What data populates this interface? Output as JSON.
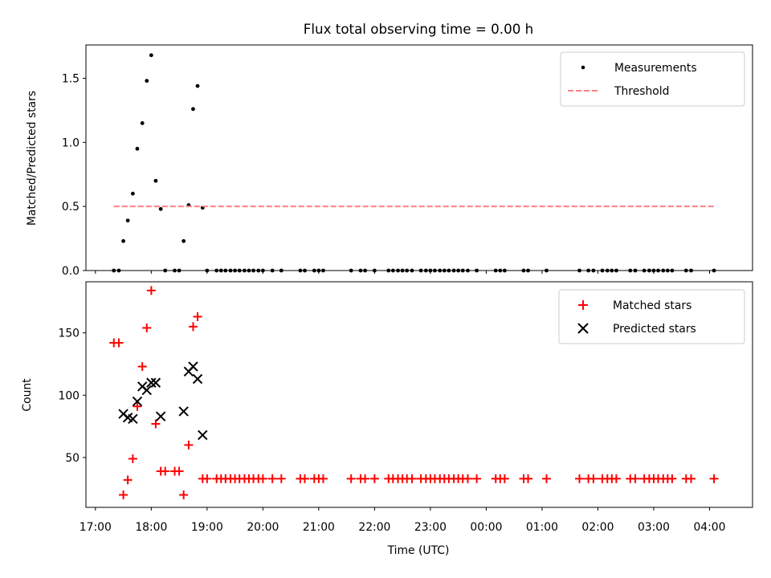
{
  "chart_data": [
    {
      "type": "scatter",
      "title": "Flux total observing time = 0.00 h",
      "xlabel": "",
      "ylabel": "Matched/Predicted stars",
      "xlim": [
        16.83,
        28.77
      ],
      "ylim": [
        0.0,
        1.76
      ],
      "yticks": [
        0.0,
        0.5,
        1.0,
        1.5
      ],
      "ytick_labels": [
        "0.0",
        "0.5",
        "1.0",
        "1.5"
      ],
      "legend_position": "top-right",
      "series": [
        {
          "name": "Measurements",
          "marker": "dot",
          "color": "#000000",
          "points": [
            [
              17.33,
              0.0
            ],
            [
              17.42,
              0.0
            ],
            [
              17.5,
              0.23
            ],
            [
              17.58,
              0.39
            ],
            [
              17.67,
              0.6
            ],
            [
              17.75,
              0.95
            ],
            [
              17.84,
              1.15
            ],
            [
              17.92,
              1.48
            ],
            [
              18.0,
              1.68
            ],
            [
              18.08,
              0.7
            ],
            [
              18.17,
              0.48
            ],
            [
              18.25,
              0.0
            ],
            [
              18.42,
              0.0
            ],
            [
              18.5,
              0.0
            ],
            [
              18.58,
              0.23
            ],
            [
              18.67,
              0.51
            ],
            [
              18.75,
              1.26
            ],
            [
              18.83,
              1.44
            ],
            [
              18.92,
              0.49
            ],
            [
              19.0,
              0.0
            ],
            [
              19.17,
              0.0
            ],
            [
              19.25,
              0.0
            ],
            [
              19.33,
              0.0
            ],
            [
              19.42,
              0.0
            ],
            [
              19.5,
              0.0
            ],
            [
              19.58,
              0.0
            ],
            [
              19.67,
              0.0
            ],
            [
              19.75,
              0.0
            ],
            [
              19.83,
              0.0
            ],
            [
              19.92,
              0.0
            ],
            [
              20.0,
              0.0
            ],
            [
              20.17,
              0.0
            ],
            [
              20.33,
              0.0
            ],
            [
              20.67,
              0.0
            ],
            [
              20.75,
              0.0
            ],
            [
              20.92,
              0.0
            ],
            [
              21.0,
              0.0
            ],
            [
              21.08,
              0.0
            ],
            [
              21.58,
              0.0
            ],
            [
              21.75,
              0.0
            ],
            [
              21.83,
              0.0
            ],
            [
              22.0,
              0.0
            ],
            [
              22.25,
              0.0
            ],
            [
              22.33,
              0.0
            ],
            [
              22.42,
              0.0
            ],
            [
              22.5,
              0.0
            ],
            [
              22.58,
              0.0
            ],
            [
              22.67,
              0.0
            ],
            [
              22.83,
              0.0
            ],
            [
              22.92,
              0.0
            ],
            [
              23.0,
              0.0
            ],
            [
              23.08,
              0.0
            ],
            [
              23.17,
              0.0
            ],
            [
              23.25,
              0.0
            ],
            [
              23.33,
              0.0
            ],
            [
              23.42,
              0.0
            ],
            [
              23.5,
              0.0
            ],
            [
              23.58,
              0.0
            ],
            [
              23.67,
              0.0
            ],
            [
              23.83,
              0.0
            ],
            [
              24.17,
              0.0
            ],
            [
              24.25,
              0.0
            ],
            [
              24.33,
              0.0
            ],
            [
              24.67,
              0.0
            ],
            [
              24.75,
              0.0
            ],
            [
              25.08,
              0.0
            ],
            [
              25.67,
              0.0
            ],
            [
              25.83,
              0.0
            ],
            [
              25.92,
              0.0
            ],
            [
              26.08,
              0.0
            ],
            [
              26.17,
              0.0
            ],
            [
              26.25,
              0.0
            ],
            [
              26.33,
              0.0
            ],
            [
              26.58,
              0.0
            ],
            [
              26.67,
              0.0
            ],
            [
              26.83,
              0.0
            ],
            [
              26.92,
              0.0
            ],
            [
              27.0,
              0.0
            ],
            [
              27.08,
              0.0
            ],
            [
              27.17,
              0.0
            ],
            [
              27.25,
              0.0
            ],
            [
              27.33,
              0.0
            ],
            [
              27.58,
              0.0
            ],
            [
              27.67,
              0.0
            ],
            [
              28.08,
              0.0
            ]
          ]
        },
        {
          "name": "Threshold",
          "marker": "dashed-line",
          "color": "#ff7f7f",
          "points": [
            [
              17.33,
              0.5
            ],
            [
              28.08,
              0.5
            ]
          ]
        }
      ]
    },
    {
      "type": "scatter",
      "title": "",
      "xlabel": "Time (UTC)",
      "ylabel": "Count",
      "xlim": [
        16.83,
        28.77
      ],
      "ylim": [
        10,
        191
      ],
      "yticks": [
        50,
        100,
        150
      ],
      "ytick_labels": [
        "50",
        "100",
        "150"
      ],
      "xticks": [
        17,
        18,
        19,
        20,
        21,
        22,
        23,
        24,
        25,
        26,
        27,
        28
      ],
      "xtick_labels": [
        "17:00",
        "18:00",
        "19:00",
        "20:00",
        "21:00",
        "22:00",
        "23:00",
        "00:00",
        "01:00",
        "02:00",
        "03:00",
        "04:00"
      ],
      "legend_position": "top-right",
      "series": [
        {
          "name": "Matched stars",
          "marker": "plus",
          "color": "#ff0000",
          "points": [
            [
              17.33,
              142
            ],
            [
              17.42,
              142
            ],
            [
              17.5,
              20
            ],
            [
              17.58,
              32
            ],
            [
              17.67,
              49
            ],
            [
              17.75,
              91
            ],
            [
              17.84,
              123
            ],
            [
              17.92,
              154
            ],
            [
              18.0,
              184
            ],
            [
              18.08,
              77
            ],
            [
              18.17,
              39
            ],
            [
              18.25,
              39
            ],
            [
              18.42,
              39
            ],
            [
              18.5,
              39
            ],
            [
              18.58,
              20
            ],
            [
              18.67,
              60
            ],
            [
              18.75,
              155
            ],
            [
              18.83,
              163
            ],
            [
              18.92,
              33
            ],
            [
              19.0,
              33
            ],
            [
              19.17,
              33
            ],
            [
              19.25,
              33
            ],
            [
              19.33,
              33
            ],
            [
              19.42,
              33
            ],
            [
              19.5,
              33
            ],
            [
              19.58,
              33
            ],
            [
              19.67,
              33
            ],
            [
              19.75,
              33
            ],
            [
              19.83,
              33
            ],
            [
              19.92,
              33
            ],
            [
              20.0,
              33
            ],
            [
              20.17,
              33
            ],
            [
              20.33,
              33
            ],
            [
              20.67,
              33
            ],
            [
              20.75,
              33
            ],
            [
              20.92,
              33
            ],
            [
              21.0,
              33
            ],
            [
              21.08,
              33
            ],
            [
              21.58,
              33
            ],
            [
              21.75,
              33
            ],
            [
              21.83,
              33
            ],
            [
              22.0,
              33
            ],
            [
              22.25,
              33
            ],
            [
              22.33,
              33
            ],
            [
              22.42,
              33
            ],
            [
              22.5,
              33
            ],
            [
              22.58,
              33
            ],
            [
              22.67,
              33
            ],
            [
              22.83,
              33
            ],
            [
              22.92,
              33
            ],
            [
              23.0,
              33
            ],
            [
              23.08,
              33
            ],
            [
              23.17,
              33
            ],
            [
              23.25,
              33
            ],
            [
              23.33,
              33
            ],
            [
              23.42,
              33
            ],
            [
              23.5,
              33
            ],
            [
              23.58,
              33
            ],
            [
              23.67,
              33
            ],
            [
              23.83,
              33
            ],
            [
              24.17,
              33
            ],
            [
              24.25,
              33
            ],
            [
              24.33,
              33
            ],
            [
              24.67,
              33
            ],
            [
              24.75,
              33
            ],
            [
              25.08,
              33
            ],
            [
              25.67,
              33
            ],
            [
              25.83,
              33
            ],
            [
              25.92,
              33
            ],
            [
              26.08,
              33
            ],
            [
              26.17,
              33
            ],
            [
              26.25,
              33
            ],
            [
              26.33,
              33
            ],
            [
              26.58,
              33
            ],
            [
              26.67,
              33
            ],
            [
              26.83,
              33
            ],
            [
              26.92,
              33
            ],
            [
              27.0,
              33
            ],
            [
              27.08,
              33
            ],
            [
              27.17,
              33
            ],
            [
              27.25,
              33
            ],
            [
              27.33,
              33
            ],
            [
              27.58,
              33
            ],
            [
              27.67,
              33
            ],
            [
              28.08,
              33
            ]
          ]
        },
        {
          "name": "Predicted stars",
          "marker": "x",
          "color": "#000000",
          "points": [
            [
              17.5,
              85
            ],
            [
              17.58,
              82
            ],
            [
              17.67,
              81
            ],
            [
              17.75,
              95
            ],
            [
              17.84,
              107
            ],
            [
              17.92,
              104
            ],
            [
              18.0,
              110
            ],
            [
              18.08,
              110
            ],
            [
              18.17,
              83
            ],
            [
              18.58,
              87
            ],
            [
              18.67,
              119
            ],
            [
              18.75,
              123
            ],
            [
              18.83,
              113
            ],
            [
              18.92,
              68
            ]
          ]
        }
      ]
    }
  ]
}
